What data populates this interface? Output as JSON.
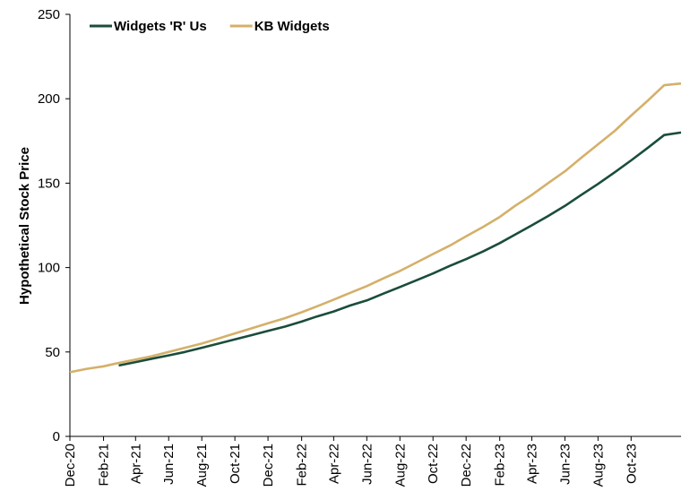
{
  "chart_data": {
    "type": "line",
    "title": "",
    "xlabel": "",
    "ylabel": "Hypothetical Stock Price",
    "ylim": [
      0,
      250
    ],
    "yticks": [
      0,
      50,
      100,
      150,
      200,
      250
    ],
    "xlim": [
      "2020-12-01",
      "2024-01-01"
    ],
    "xtick_labels": [
      "Dec-20",
      "Feb-21",
      "Apr-21",
      "Jun-21",
      "Aug-21",
      "Oct-21",
      "Dec-21",
      "Feb-22",
      "Apr-22",
      "Jun-22",
      "Aug-22",
      "Oct-22",
      "Dec-22",
      "Feb-23",
      "Apr-23",
      "Jun-23",
      "Aug-23",
      "Oct-23"
    ],
    "xtick_dates": [
      "2020-12-01",
      "2021-02-01",
      "2021-04-01",
      "2021-06-01",
      "2021-08-01",
      "2021-10-01",
      "2021-12-01",
      "2022-02-01",
      "2022-04-01",
      "2022-06-01",
      "2022-08-01",
      "2022-10-01",
      "2022-12-01",
      "2023-02-01",
      "2023-04-01",
      "2023-06-01",
      "2023-08-01",
      "2023-10-01"
    ],
    "grid": false,
    "legend_position": "top-left",
    "series": [
      {
        "name": "Widgets 'R' Us",
        "color": "#1a4d3a",
        "points": [
          [
            "2021-03-01",
            42
          ],
          [
            "2021-04-01",
            44
          ],
          [
            "2021-05-01",
            46
          ],
          [
            "2021-06-01",
            48
          ],
          [
            "2021-07-01",
            50
          ],
          [
            "2021-08-01",
            52.5
          ],
          [
            "2021-09-01",
            55
          ],
          [
            "2021-10-01",
            57.5
          ],
          [
            "2021-11-01",
            60
          ],
          [
            "2021-12-01",
            62.5
          ],
          [
            "2022-01-01",
            65
          ],
          [
            "2022-02-01",
            68
          ],
          [
            "2022-03-01",
            71
          ],
          [
            "2022-04-01",
            74
          ],
          [
            "2022-05-01",
            77.5
          ],
          [
            "2022-06-01",
            80.5
          ],
          [
            "2022-07-01",
            84.5
          ],
          [
            "2022-08-01",
            88.5
          ],
          [
            "2022-09-01",
            92.5
          ],
          [
            "2022-10-01",
            96.5
          ],
          [
            "2022-11-01",
            101
          ],
          [
            "2022-12-01",
            105
          ],
          [
            "2023-01-01",
            109.5
          ],
          [
            "2023-02-01",
            114.5
          ],
          [
            "2023-03-01",
            119.5
          ],
          [
            "2023-04-01",
            125
          ],
          [
            "2023-05-01",
            130.5
          ],
          [
            "2023-06-01",
            136.5
          ],
          [
            "2023-07-01",
            143
          ],
          [
            "2023-08-01",
            149.5
          ],
          [
            "2023-09-01",
            156.5
          ],
          [
            "2023-10-01",
            163.5
          ],
          [
            "2023-11-01",
            171
          ],
          [
            "2023-12-01",
            178.5
          ],
          [
            "2024-01-01",
            180
          ]
        ]
      },
      {
        "name": "KB Widgets",
        "color": "#d4b06a",
        "points": [
          [
            "2020-12-01",
            38
          ],
          [
            "2021-01-01",
            40
          ],
          [
            "2021-02-01",
            41.5
          ],
          [
            "2021-03-01",
            43.5
          ],
          [
            "2021-04-01",
            45.5
          ],
          [
            "2021-05-01",
            47.5
          ],
          [
            "2021-06-01",
            50
          ],
          [
            "2021-07-01",
            52.5
          ],
          [
            "2021-08-01",
            55
          ],
          [
            "2021-09-01",
            58
          ],
          [
            "2021-10-01",
            61
          ],
          [
            "2021-11-01",
            64
          ],
          [
            "2021-12-01",
            67
          ],
          [
            "2022-01-01",
            70
          ],
          [
            "2022-02-01",
            73.5
          ],
          [
            "2022-03-01",
            77
          ],
          [
            "2022-04-01",
            81
          ],
          [
            "2022-05-01",
            85
          ],
          [
            "2022-06-01",
            89
          ],
          [
            "2022-07-01",
            93.5
          ],
          [
            "2022-08-01",
            98
          ],
          [
            "2022-09-01",
            103
          ],
          [
            "2022-10-01",
            108
          ],
          [
            "2022-11-01",
            113
          ],
          [
            "2022-12-01",
            118.5
          ],
          [
            "2023-01-01",
            124
          ],
          [
            "2023-02-01",
            130
          ],
          [
            "2023-03-01",
            136.5
          ],
          [
            "2023-04-01",
            143
          ],
          [
            "2023-05-01",
            150
          ],
          [
            "2023-06-01",
            157
          ],
          [
            "2023-07-01",
            165
          ],
          [
            "2023-08-01",
            173
          ],
          [
            "2023-09-01",
            181
          ],
          [
            "2023-10-01",
            190
          ],
          [
            "2023-11-01",
            199
          ],
          [
            "2023-12-01",
            208
          ],
          [
            "2024-01-01",
            209
          ]
        ]
      }
    ]
  }
}
